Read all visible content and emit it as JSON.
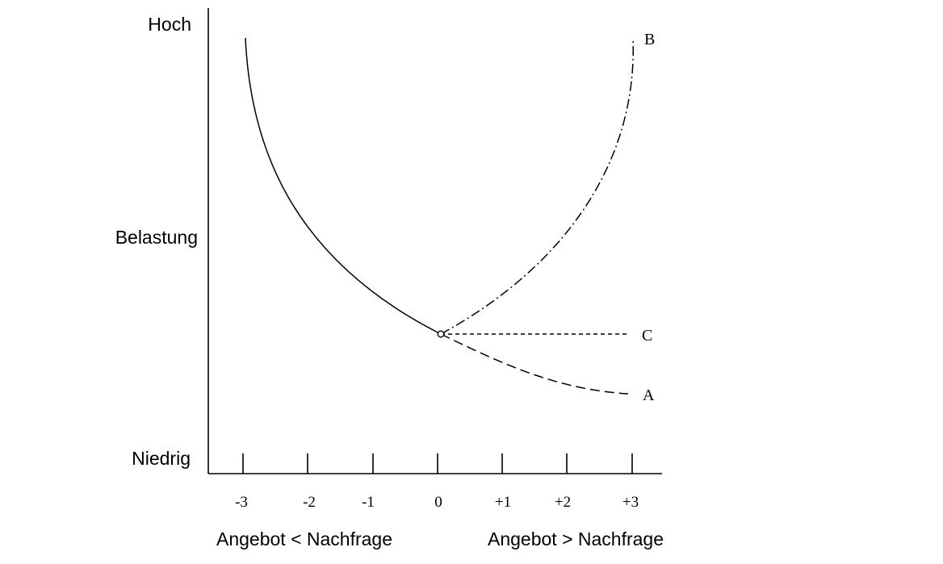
{
  "y_axis": {
    "labels": [
      "Hoch",
      "Belastung",
      "Niedrig"
    ]
  },
  "x_axis": {
    "ticks": [
      "-3",
      "-2",
      "-1",
      "0",
      "+1",
      "+2",
      "+3"
    ],
    "captions": {
      "left": "Angebot < Nachfrage",
      "right": "Angebot > Nachfrage"
    }
  },
  "curves": [
    {
      "label": "",
      "style": "solid"
    },
    {
      "label": "B",
      "style": "dash-dot"
    },
    {
      "label": "C",
      "style": "short-dashed"
    },
    {
      "label": "A",
      "style": "long-dashed"
    }
  ]
}
